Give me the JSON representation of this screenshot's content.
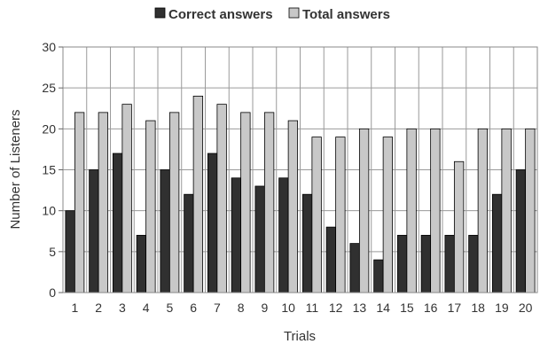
{
  "chart_data": {
    "type": "bar",
    "categories": [
      "1",
      "2",
      "3",
      "4",
      "5",
      "6",
      "7",
      "8",
      "9",
      "10",
      "11",
      "12",
      "13",
      "14",
      "15",
      "16",
      "17",
      "18",
      "19",
      "20"
    ],
    "series": [
      {
        "name": "Correct answers",
        "values": [
          10,
          15,
          17,
          7,
          15,
          12,
          17,
          14,
          13,
          14,
          12,
          8,
          6,
          4,
          7,
          7,
          7,
          7,
          12,
          15
        ],
        "color": "#303030"
      },
      {
        "name": "Total answers",
        "values": [
          22,
          22,
          23,
          21,
          22,
          24,
          23,
          22,
          22,
          21,
          19,
          19,
          20,
          19,
          20,
          20,
          16,
          20,
          20,
          20
        ],
        "color": "#c8c8c8"
      }
    ],
    "xlabel": "Trials",
    "ylabel": "Number of Listeners",
    "ylim": [
      0,
      30
    ],
    "yticks": [
      0,
      5,
      10,
      15,
      20,
      25,
      30
    ],
    "grid": true,
    "legend_position": "top"
  }
}
